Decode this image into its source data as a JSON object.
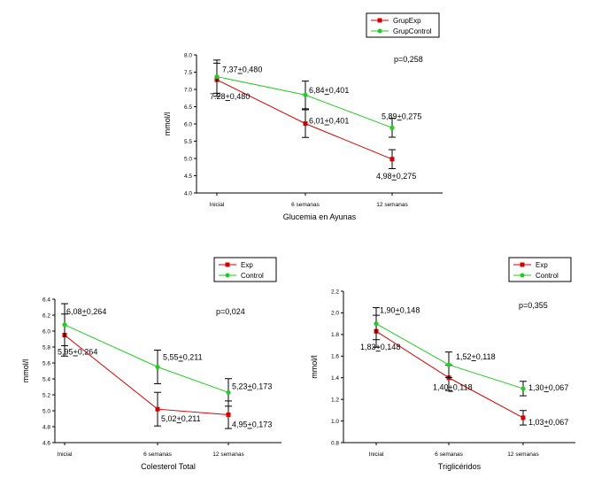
{
  "chart_data": [
    {
      "type": "line",
      "categories": [
        "Inicial",
        "6 semanas",
        "12 semanas"
      ],
      "xlabel": "Glucemia en Ayunas",
      "ylabel": "mmol/l",
      "ylim": [
        4.0,
        8.0
      ],
      "yticks": [
        "4.0",
        "4.5",
        "5.0",
        "5.5",
        "6.0",
        "6.5",
        "7.0",
        "7.5",
        "8.0"
      ],
      "ytick_values": [
        4.0,
        4.5,
        5.0,
        5.5,
        6.0,
        6.5,
        7.0,
        7.5,
        8.0
      ],
      "pvalue": "p=0,258",
      "legend_position": "top-right",
      "series": [
        {
          "name": "GrupExp",
          "color": "#d40000",
          "marker": "square",
          "values": [
            7.28,
            6.01,
            4.98
          ],
          "errors": [
            0.48,
            0.401,
            0.275
          ],
          "labels": [
            "7.28+0,480",
            "6,01+0,401",
            "4,98+0,275"
          ]
        },
        {
          "name": "GrupControl",
          "color": "#22cc22",
          "marker": "circle",
          "values": [
            7.37,
            6.84,
            5.89
          ],
          "errors": [
            0.48,
            0.401,
            0.275
          ],
          "labels": [
            "7,37+0,480",
            "6,84+0,401",
            "5,89+0,275"
          ]
        }
      ]
    },
    {
      "type": "line",
      "categories": [
        "Inicial",
        "6 semanas",
        "12 semanas"
      ],
      "xlabel": "Colesterol Total",
      "ylabel": "mmol/l",
      "ylim": [
        4.6,
        6.4
      ],
      "yticks": [
        "4.6",
        "4.8",
        "5.0",
        "5.2",
        "5.4",
        "5.6",
        "5.8",
        "6.0",
        "6.2",
        "6.4"
      ],
      "ytick_values": [
        4.6,
        4.8,
        5.0,
        5.2,
        5.4,
        5.6,
        5.8,
        6.0,
        6.2,
        6.4
      ],
      "pvalue": "p=0,024",
      "legend_position": "top-right",
      "series": [
        {
          "name": "Exp",
          "color": "#d40000",
          "marker": "square",
          "values": [
            5.95,
            5.02,
            4.95
          ],
          "errors": [
            0.264,
            0.211,
            0.173
          ],
          "labels": [
            "5,95+0,264",
            "5,02+0,211",
            "4,95+0,173"
          ]
        },
        {
          "name": "Control",
          "color": "#22cc22",
          "marker": "circle",
          "values": [
            6.08,
            5.55,
            5.23
          ],
          "errors": [
            0.264,
            0.211,
            0.173
          ],
          "labels": [
            "6,08+0,264",
            "5,55+0,211",
            "5,23+0,173"
          ]
        }
      ]
    },
    {
      "type": "line",
      "categories": [
        "Inicial",
        "6 semanas",
        "12 semanas"
      ],
      "xlabel": "Triglicéridos",
      "ylabel": "mmol/l",
      "ylim": [
        0.8,
        2.2
      ],
      "yticks": [
        "0.8",
        "1.0",
        "1.2",
        "1.4",
        "1.6",
        "1.8",
        "2.0",
        "2.2"
      ],
      "ytick_values": [
        0.8,
        1.0,
        1.2,
        1.4,
        1.6,
        1.8,
        2.0,
        2.2
      ],
      "pvalue": "p=0,355",
      "legend_position": "top-right",
      "series": [
        {
          "name": "Exp",
          "color": "#d40000",
          "marker": "square",
          "values": [
            1.83,
            1.4,
            1.03
          ],
          "errors": [
            0.148,
            0.118,
            0.067
          ],
          "labels": [
            "1,83+0,148",
            "1,40+0,118",
            "1,03+0,067"
          ]
        },
        {
          "name": "Control",
          "color": "#22cc22",
          "marker": "circle",
          "values": [
            1.9,
            1.52,
            1.3
          ],
          "errors": [
            0.148,
            0.118,
            0.067
          ],
          "labels": [
            "1,90+0,148",
            "1,52+0,118",
            "1,30+0,067"
          ]
        }
      ]
    }
  ]
}
